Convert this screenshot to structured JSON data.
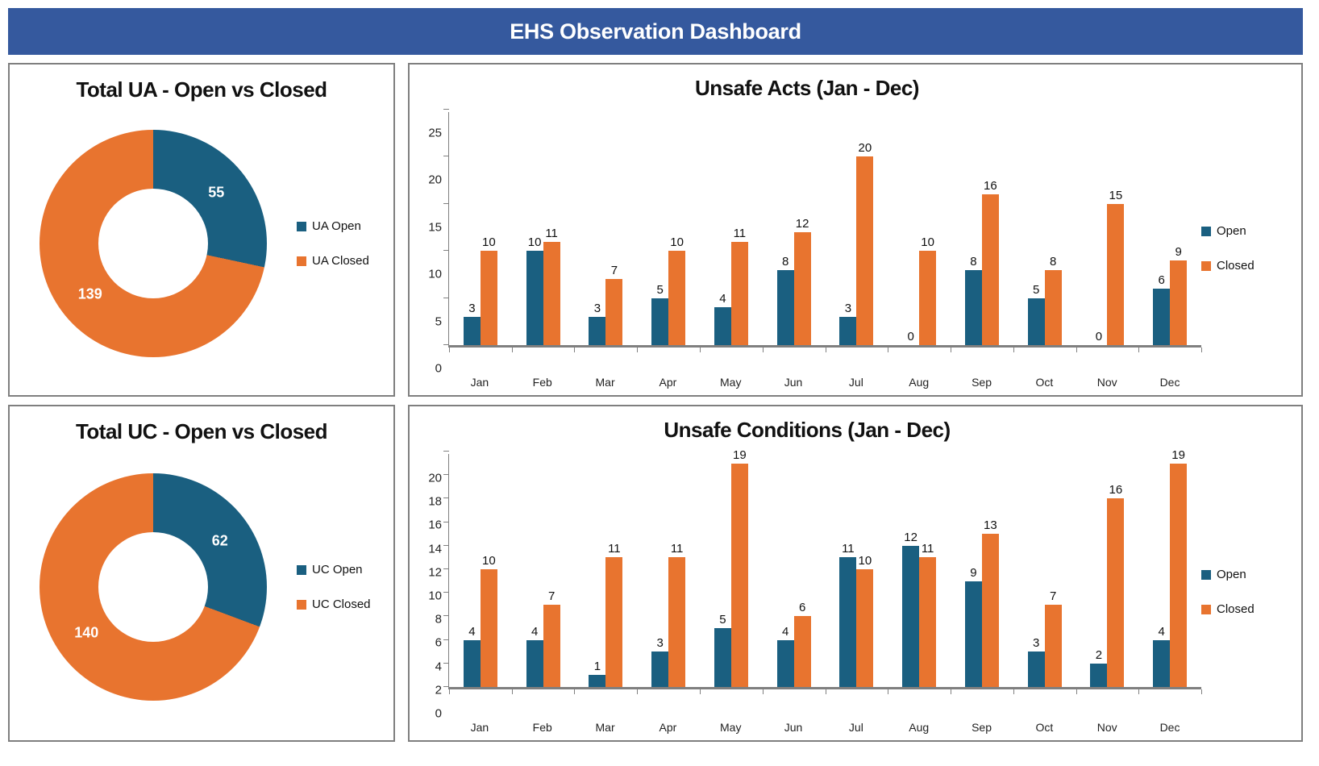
{
  "header": {
    "title": "EHS Observation Dashboard",
    "bg": "#35599E"
  },
  "colors": {
    "open": "#1A5F80",
    "closed": "#E8742F",
    "header_bg": "#35599E",
    "panel_border": "#7F7F7F",
    "axis": "#808080",
    "donut_label": "#FFFFFF"
  },
  "chart_data": [
    {
      "id": "ua-donut",
      "type": "pie",
      "subtype": "donut",
      "title": "Total UA - Open vs Closed",
      "labels": [
        "UA Open",
        "UA Closed"
      ],
      "values": [
        55,
        139
      ],
      "colors": [
        "#1A5F80",
        "#E8742F"
      ],
      "legend_position": "right",
      "data_label_color": "#FFFFFF"
    },
    {
      "id": "unsafe-acts",
      "type": "bar",
      "title": "Unsafe Acts (Jan - Dec)",
      "categories": [
        "Jan",
        "Feb",
        "Mar",
        "Apr",
        "May",
        "Jun",
        "Jul",
        "Aug",
        "Sep",
        "Oct",
        "Nov",
        "Dec"
      ],
      "series": [
        {
          "name": "Open",
          "color": "#1A5F80",
          "values": [
            3,
            10,
            3,
            5,
            4,
            8,
            3,
            0,
            8,
            5,
            0,
            6
          ]
        },
        {
          "name": "Closed",
          "color": "#E8742F",
          "values": [
            10,
            11,
            7,
            10,
            11,
            12,
            20,
            10,
            16,
            8,
            15,
            9
          ]
        }
      ],
      "ylim": [
        0,
        25
      ],
      "ytick_step": 5,
      "grid": false,
      "legend_position": "right"
    },
    {
      "id": "uc-donut",
      "type": "pie",
      "subtype": "donut",
      "title": "Total UC - Open vs Closed",
      "labels": [
        "UC Open",
        "UC Closed"
      ],
      "values": [
        62,
        140
      ],
      "colors": [
        "#1A5F80",
        "#E8742F"
      ],
      "legend_position": "right",
      "data_label_color": "#FFFFFF"
    },
    {
      "id": "unsafe-conditions",
      "type": "bar",
      "title": "Unsafe Conditions (Jan - Dec)",
      "categories": [
        "Jan",
        "Feb",
        "Mar",
        "Apr",
        "May",
        "Jun",
        "Jul",
        "Aug",
        "Sep",
        "Oct",
        "Nov",
        "Dec"
      ],
      "series": [
        {
          "name": "Open",
          "color": "#1A5F80",
          "values": [
            4,
            4,
            1,
            3,
            5,
            4,
            11,
            12,
            9,
            3,
            2,
            4
          ]
        },
        {
          "name": "Closed",
          "color": "#E8742F",
          "values": [
            10,
            7,
            11,
            11,
            19,
            6,
            10,
            11,
            13,
            7,
            16,
            19
          ]
        }
      ],
      "ylim": [
        0,
        20
      ],
      "ytick_step": 2,
      "grid": false,
      "legend_position": "right"
    }
  ]
}
